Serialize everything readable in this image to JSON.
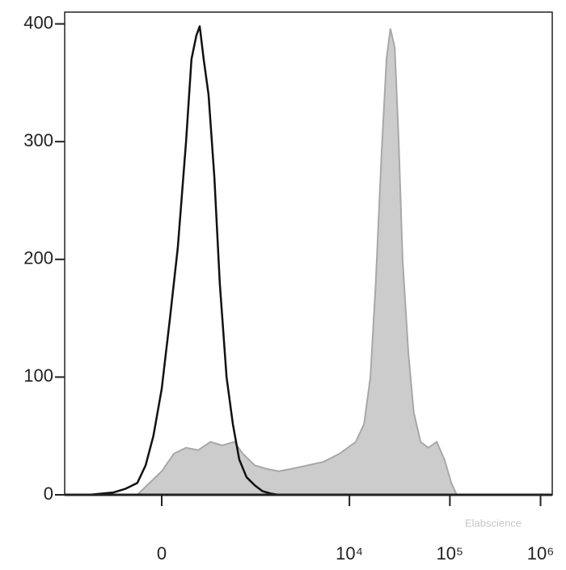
{
  "chart_data": {
    "type": "histogram-overlay",
    "xlim": [
      0,
      1000
    ],
    "ylim": [
      0,
      410
    ],
    "yticks": [
      0,
      100,
      200,
      300,
      400
    ],
    "xticks": [
      {
        "value": 199,
        "label": "0"
      },
      {
        "value": 584,
        "label": "10⁴"
      },
      {
        "value": 790,
        "label": "10⁵"
      },
      {
        "value": 976,
        "label": "10⁶"
      }
    ],
    "watermark": "Elabscience",
    "series": [
      {
        "style": "area",
        "color": "#cccccc",
        "stroke": "#a8a8a8",
        "x": [
          149,
          174,
          199,
          224,
          249,
          274,
          299,
          323,
          348,
          365,
          390,
          415,
          439,
          464,
          498,
          531,
          564,
          597,
          614,
          627,
          638,
          650,
          660,
          668,
          677,
          685,
          693,
          705,
          716,
          730,
          746,
          763,
          779,
          793,
          804
        ],
        "values": [
          0,
          10,
          20,
          35,
          40,
          38,
          45,
          42,
          45,
          35,
          25,
          22,
          20,
          22,
          25,
          28,
          35,
          45,
          60,
          100,
          180,
          290,
          370,
          396,
          380,
          300,
          200,
          120,
          70,
          45,
          40,
          45,
          30,
          10,
          0
        ]
      },
      {
        "style": "line",
        "color": "#111111",
        "x": [
          50,
          100,
          124,
          149,
          166,
          182,
          199,
          216,
          232,
          249,
          260,
          270,
          277,
          285,
          295,
          307,
          318,
          332,
          345,
          358,
          373,
          390,
          406,
          423,
          439,
          531,
          630,
          697
        ],
        "values": [
          0,
          2,
          5,
          10,
          25,
          50,
          90,
          150,
          210,
          300,
          370,
          390,
          398,
          370,
          340,
          270,
          180,
          100,
          60,
          30,
          15,
          8,
          3,
          1,
          0,
          0,
          0,
          0
        ]
      }
    ]
  }
}
